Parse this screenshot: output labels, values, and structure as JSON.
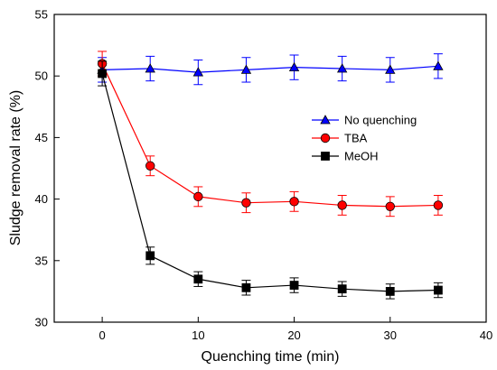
{
  "chart_data": {
    "type": "line",
    "title": "",
    "xlabel": "Quenching time (min)",
    "ylabel": "Sludge removal rate (%)",
    "xlim": [
      -5,
      40
    ],
    "ylim": [
      30,
      55
    ],
    "xticks": [
      0,
      10,
      20,
      30,
      40
    ],
    "yticks": [
      30,
      35,
      40,
      45,
      50,
      55
    ],
    "legend_position": "right, upper-middle",
    "grid": false,
    "x": [
      0,
      5,
      10,
      15,
      20,
      25,
      30,
      35
    ],
    "series": [
      {
        "name": "No quenching",
        "color": "#0000ff",
        "marker": "triangle",
        "values": [
          50.5,
          50.6,
          50.3,
          50.5,
          50.7,
          50.6,
          50.5,
          50.8
        ],
        "errors": [
          1.0,
          1.0,
          1.0,
          1.0,
          1.0,
          1.0,
          1.0,
          1.0
        ]
      },
      {
        "name": "TBA",
        "color": "#ff0000",
        "marker": "circle",
        "values": [
          51.0,
          42.7,
          40.2,
          39.7,
          39.8,
          39.5,
          39.4,
          39.5
        ],
        "errors": [
          1.0,
          0.8,
          0.8,
          0.8,
          0.8,
          0.8,
          0.8,
          0.8
        ]
      },
      {
        "name": "MeOH",
        "color": "#000000",
        "marker": "square",
        "values": [
          50.2,
          35.4,
          33.5,
          32.8,
          33.0,
          32.7,
          32.5,
          32.6
        ],
        "errors": [
          1.0,
          0.7,
          0.6,
          0.6,
          0.6,
          0.6,
          0.6,
          0.6
        ]
      }
    ]
  }
}
